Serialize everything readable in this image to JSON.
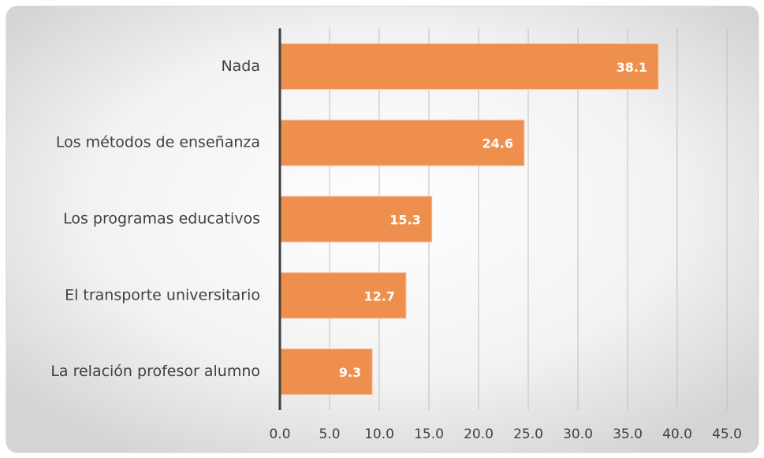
{
  "chart_data": {
    "type": "bar",
    "orientation": "horizontal",
    "categories": [
      "Nada",
      "Los métodos de enseñanza",
      "Los programas educativos",
      "El transporte universitario",
      "La relación profesor alumno"
    ],
    "values": [
      38.1,
      24.6,
      15.3,
      12.7,
      9.3
    ],
    "color": "#ef8f4e",
    "xlim": [
      0,
      45
    ],
    "xticks": [
      {
        "value": 0,
        "label": "0.0"
      },
      {
        "value": 5,
        "label": "5.0"
      },
      {
        "value": 10,
        "label": "10.0"
      },
      {
        "value": 15,
        "label": "15.0"
      },
      {
        "value": 20,
        "label": "20.0"
      },
      {
        "value": 25,
        "label": "25.0"
      },
      {
        "value": 30,
        "label": "30.0"
      },
      {
        "value": 35,
        "label": "35.0"
      },
      {
        "value": 40,
        "label": "40.0"
      },
      {
        "value": 45,
        "label": "45.0"
      }
    ],
    "grid": true
  }
}
